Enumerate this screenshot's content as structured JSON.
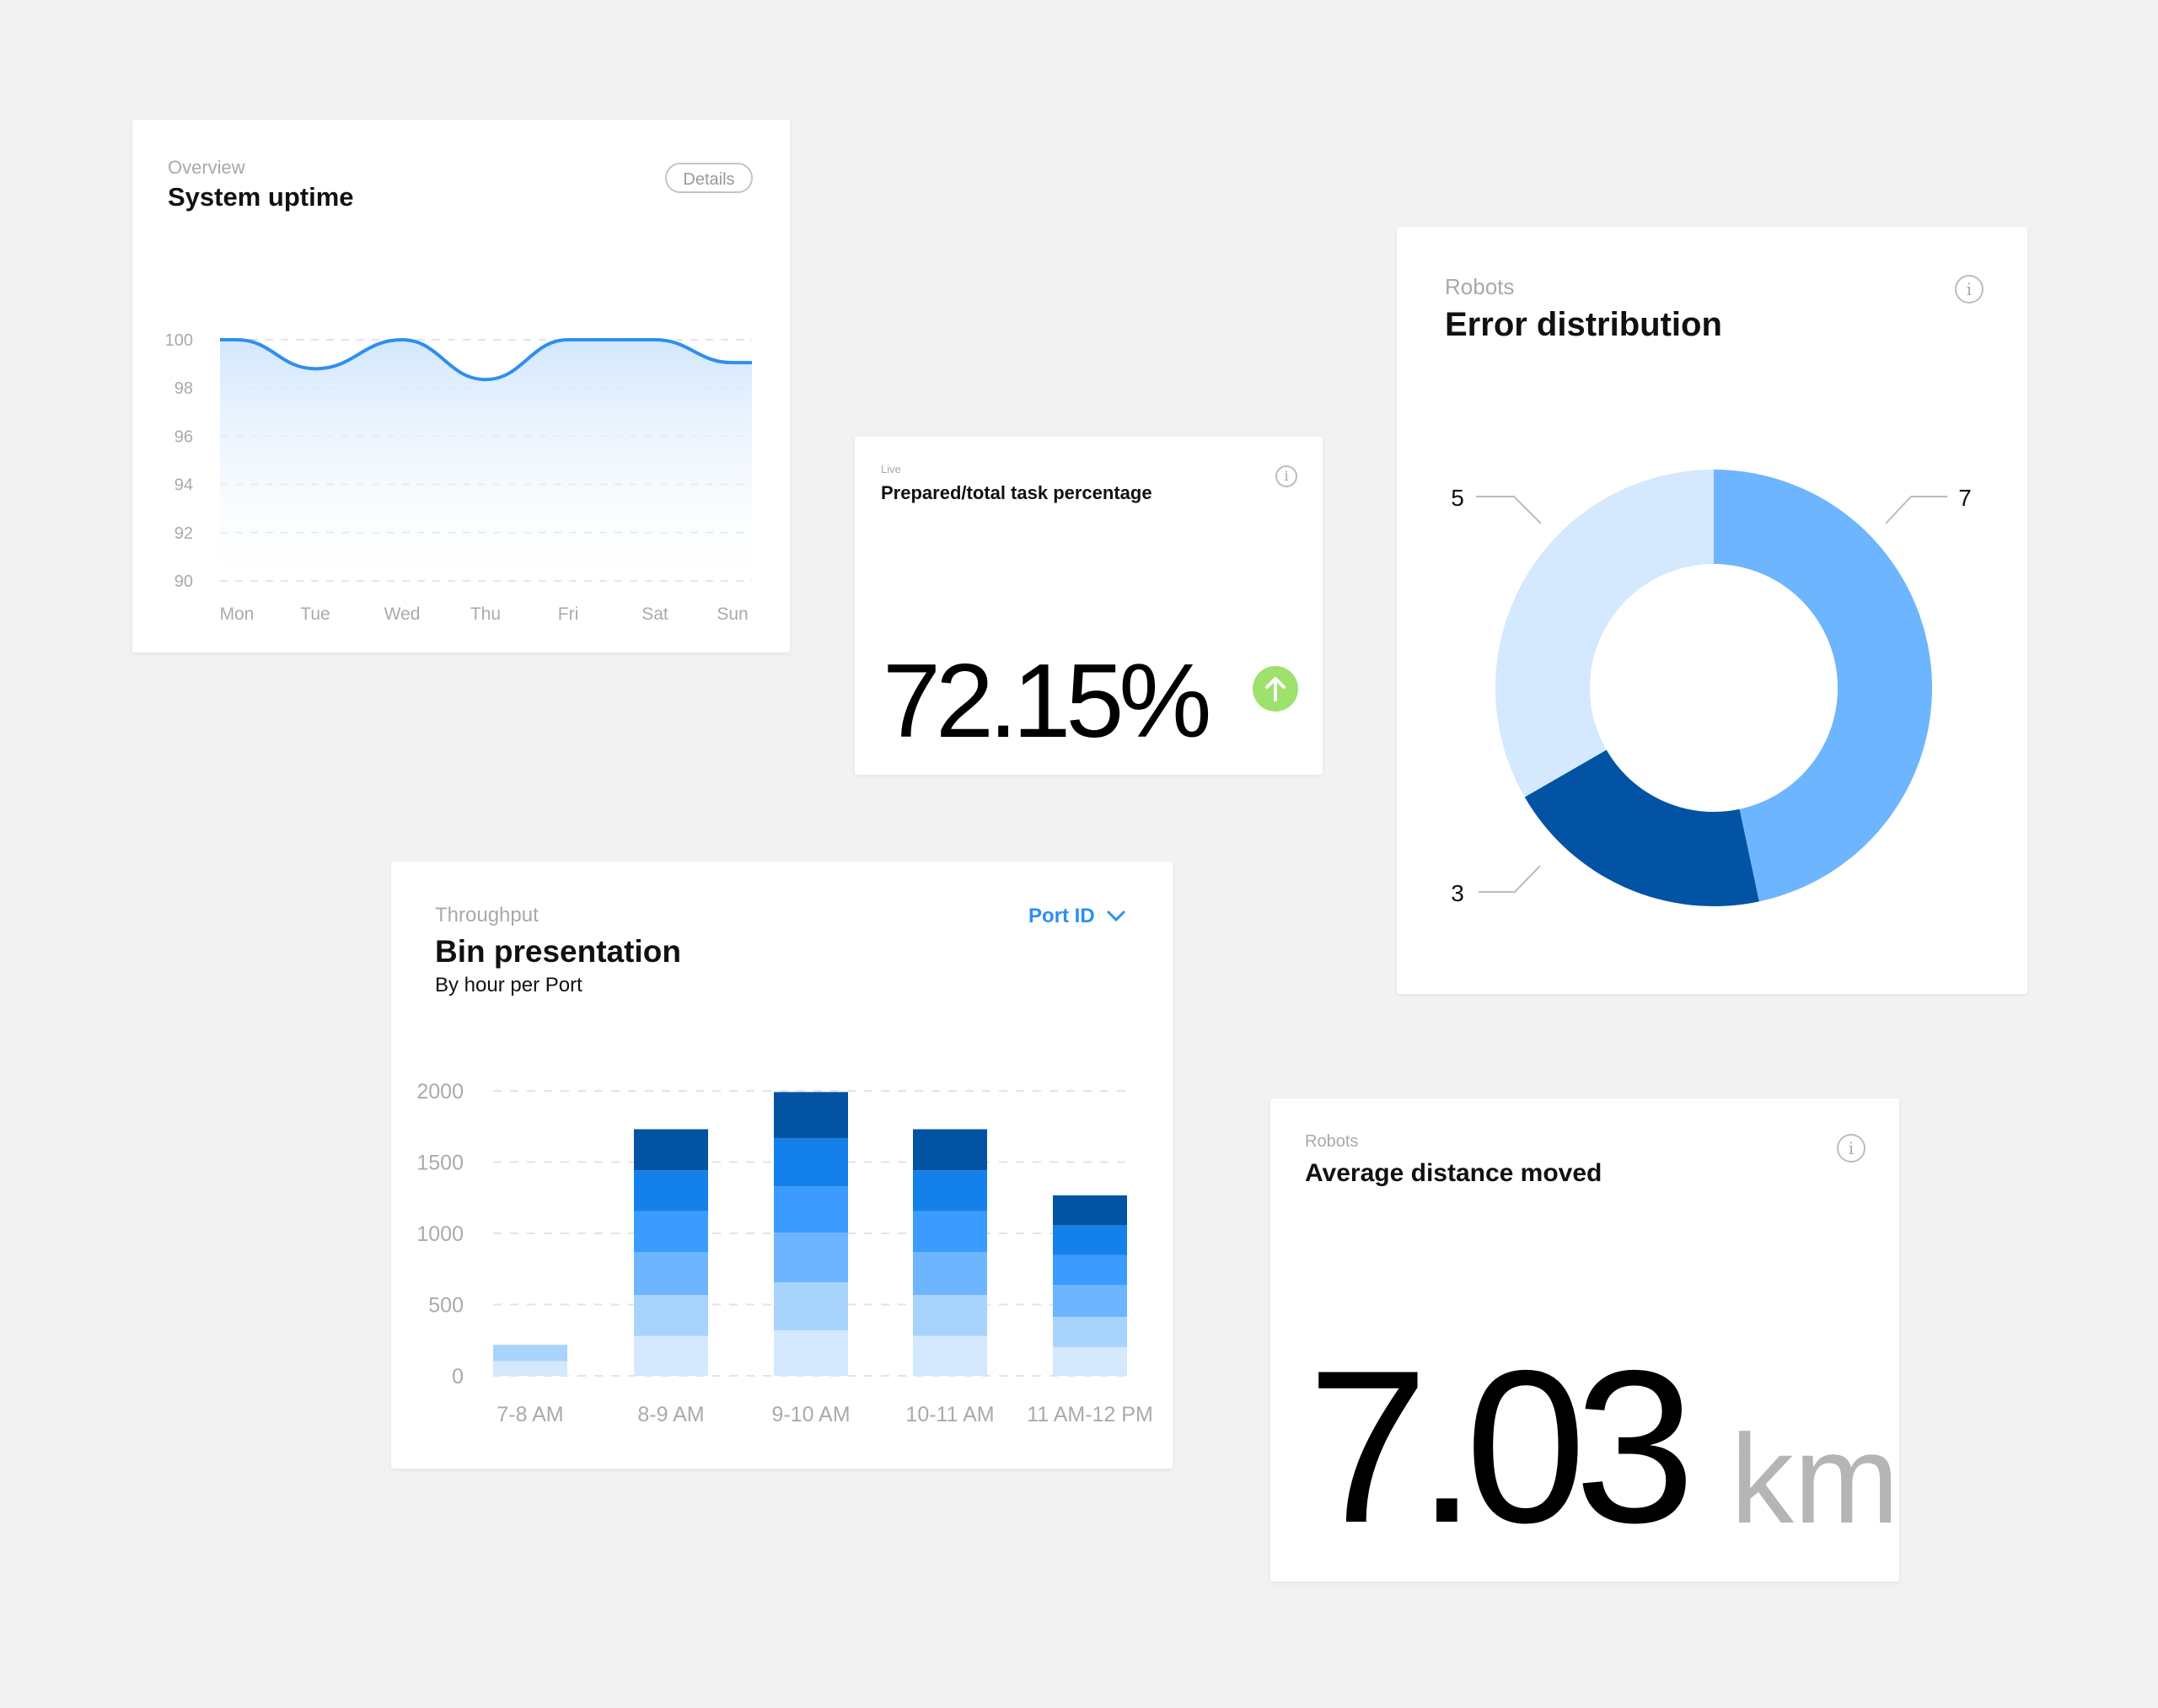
{
  "colors": {
    "background": "#f2f2f2",
    "accent": "#2e8ef0",
    "positive": "#9ee16d",
    "bar_segments": [
      "#d4e8fe",
      "#a8d3fd",
      "#6db5fe",
      "#3b9cfd",
      "#1480ea",
      "#0353a4"
    ]
  },
  "uptime_card": {
    "eyebrow": "Overview",
    "title": "System uptime",
    "details_label": "Details"
  },
  "task_card": {
    "eyebrow": "Live",
    "title": "Prepared/total task percentage",
    "value": "72.15%",
    "trend_icon": "arrow-up-icon",
    "info_icon": "info-icon"
  },
  "error_card": {
    "eyebrow": "Robots",
    "title": "Error distribution",
    "info_icon": "info-icon"
  },
  "bin_card": {
    "eyebrow": "Throughput",
    "title": "Bin presentation",
    "subtitle": "By hour per Port",
    "dropdown_label": "Port ID",
    "dropdown_icon": "chevron-down-icon"
  },
  "distance_card": {
    "eyebrow": "Robots",
    "title": "Average distance moved",
    "value": "7.03",
    "unit": "km",
    "info_icon": "info-icon"
  },
  "chart_data": [
    {
      "type": "area",
      "categories": [
        "Mon",
        "Tue",
        "Wed",
        "Thu",
        "Fri",
        "Sat",
        "Sun"
      ],
      "values": [
        100,
        98.8,
        100,
        98.35,
        100,
        100,
        99.05
      ],
      "ylim": [
        90,
        100
      ],
      "yticks": [
        "90",
        "92",
        "94",
        "96",
        "98",
        "100"
      ],
      "grid": true,
      "color": "#2e8ef0"
    },
    {
      "type": "pie",
      "donut": true,
      "labels": [
        "7",
        "3",
        "5"
      ],
      "values": [
        7,
        3,
        5
      ],
      "colors": [
        "#6db5fe",
        "#0353a4",
        "#d4e8fe"
      ]
    },
    {
      "type": "bar",
      "stacked": true,
      "categories": [
        "7-8 AM",
        "8-9 AM",
        "9-10 AM",
        "10-11 AM",
        "11 AM-12 PM"
      ],
      "series": [
        {
          "values": [
            104,
            280,
            320,
            280,
            202
          ]
        },
        {
          "values": [
            114,
            288,
            337,
            288,
            212
          ]
        },
        {
          "values": [
            0,
            300,
            349,
            300,
            223
          ]
        },
        {
          "values": [
            0,
            289,
            325,
            289,
            210
          ]
        },
        {
          "values": [
            0,
            286,
            338,
            286,
            210
          ]
        },
        {
          "values": [
            0,
            288,
            323,
            288,
            210
          ]
        }
      ],
      "ylim": [
        0,
        2000
      ],
      "yticks": [
        "0",
        "500",
        "1000",
        "1500",
        "2000"
      ],
      "grid": true
    }
  ]
}
